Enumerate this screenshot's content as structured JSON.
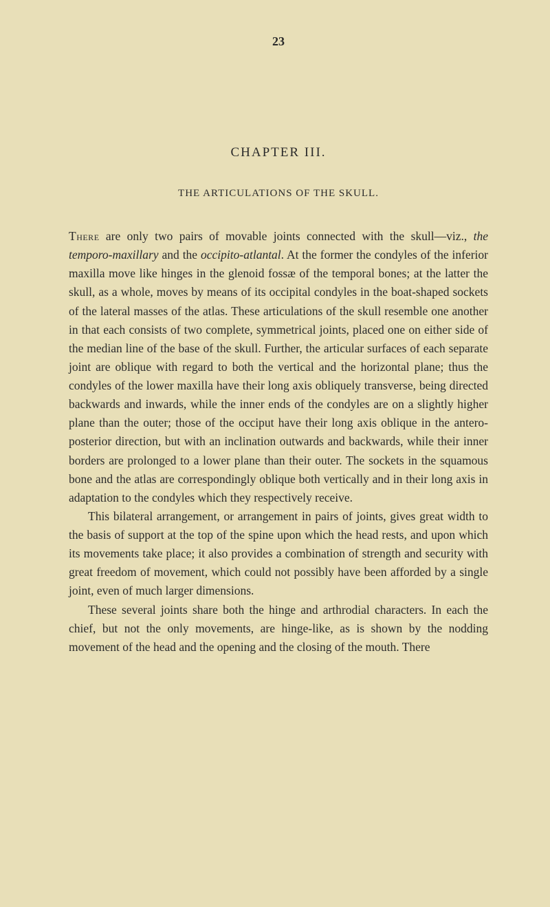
{
  "pageNumber": "23",
  "chapterTitle": "CHAPTER III.",
  "sectionTitle": "THE ARTICULATIONS OF THE SKULL.",
  "paragraphs": {
    "p1_lead": "There",
    "p1_part1": " are only two pairs of movable joints connected with the skull—viz., ",
    "p1_italic1": "the temporo-maxillary",
    "p1_part2": " and the ",
    "p1_italic2": "occipito-atlantal",
    "p1_part3": ". At the former the condyles of the inferior maxilla move like hinges in the glenoid fossæ of the temporal bones; at the latter the skull, as a whole, moves by means of its occipital condyles in the boat-shaped sockets of the lateral masses of the atlas. These articulations of the skull resemble one another in that each consists of two complete, symmetrical joints, placed one on either side of the median line of the base of the skull. Further, the articular surfaces of each separate joint are oblique with regard to both the vertical and the horizontal plane; thus the condyles of the lower maxilla have their long axis obliquely transverse, being directed backwards and inwards, while the inner ends of the condyles are on a slightly higher plane than the outer; those of the occiput have their long axis oblique in the antero-posterior direction, but with an inclination outwards and backwards, while their inner borders are prolonged to a lower plane than their outer. The sockets in the squamous bone and the atlas are correspondingly oblique both vertically and in their long axis in adaptation to the condyles which they respectively receive.",
    "p2": "This bilateral arrangement, or arrangement in pairs of joints, gives great width to the basis of support at the top of the spine upon which the head rests, and upon which its movements take place; it also provides a combination of strength and security with great freedom of movement, which could not possibly have been afforded by a single joint, even of much larger dimensions.",
    "p3": "These several joints share both the hinge and arthrodial characters. In each the chief, but not the only movements, are hinge-like, as is shown by the nodding movement of the head and the opening and the closing of the mouth. There"
  }
}
